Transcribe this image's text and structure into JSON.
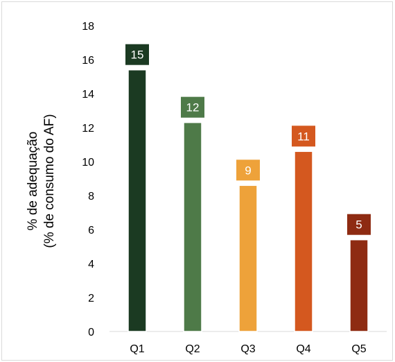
{
  "chart_data": {
    "type": "bar",
    "categories": [
      "Q1",
      "Q2",
      "Q3",
      "Q4",
      "Q5"
    ],
    "values": [
      15.4,
      12.3,
      8.6,
      10.6,
      5.4
    ],
    "data_labels": [
      "15",
      "12",
      "9",
      "11",
      "5"
    ],
    "colors": [
      "#1b3a22",
      "#4e7a48",
      "#eea23a",
      "#d4581f",
      "#8e2b12"
    ],
    "title": "",
    "xlabel": "",
    "ylabel": [
      "% de adequação",
      "(% de consumo do AF)"
    ],
    "ylim": [
      0,
      18
    ],
    "yticks": [
      0,
      2,
      4,
      6,
      8,
      10,
      12,
      14,
      16,
      18
    ],
    "grid": false,
    "legend": "none"
  }
}
